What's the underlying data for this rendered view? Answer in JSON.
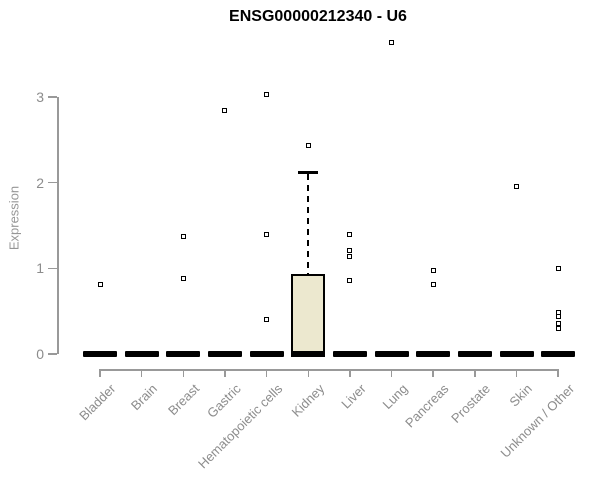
{
  "page": {
    "title": "ENSG00000212340 - U6"
  },
  "colors": {
    "axis": "#999999",
    "tick_text": "#8c8c8c",
    "title_text": "#000000",
    "box_fill": "#ece8cf",
    "box_border": "#000000"
  },
  "chart_data": {
    "type": "boxplot",
    "title": "ENSG00000212340 - U6",
    "xlabel": "",
    "ylabel": "Expression",
    "ylim": [
      0,
      3
    ],
    "yticks": [
      0,
      1,
      2,
      3
    ],
    "grid": false,
    "legend": "none",
    "box_fill": "#ece8cf",
    "categories": [
      "Bladder",
      "Brain",
      "Breast",
      "Gastric",
      "Hematopoietic cells",
      "Kidney",
      "Liver",
      "Lung",
      "Pancreas",
      "Prostate",
      "Skin",
      "Unknown / Other"
    ],
    "series": [
      {
        "category": "Bladder",
        "q1": 0,
        "median": 0,
        "q3": 0,
        "whisker_low": 0,
        "whisker_high": 0,
        "outliers": [
          0.81
        ]
      },
      {
        "category": "Brain",
        "q1": 0,
        "median": 0,
        "q3": 0,
        "whisker_low": 0,
        "whisker_high": 0,
        "outliers": []
      },
      {
        "category": "Breast",
        "q1": 0,
        "median": 0,
        "q3": 0,
        "whisker_low": 0,
        "whisker_high": 0,
        "outliers": [
          1.37,
          0.88
        ]
      },
      {
        "category": "Gastric",
        "q1": 0,
        "median": 0,
        "q3": 0,
        "whisker_low": 0,
        "whisker_high": 0,
        "outliers": [
          2.84
        ]
      },
      {
        "category": "Hematopoietic cells",
        "q1": 0,
        "median": 0,
        "q3": 0,
        "whisker_low": 0,
        "whisker_high": 0,
        "outliers": [
          3.03,
          1.39,
          0.4
        ]
      },
      {
        "category": "Kidney",
        "q1": 0,
        "median": 0,
        "q3": 0.93,
        "whisker_low": 0,
        "whisker_high": 2.12,
        "outliers": [
          2.43
        ]
      },
      {
        "category": "Liver",
        "q1": 0,
        "median": 0,
        "q3": 0,
        "whisker_low": 0,
        "whisker_high": 0,
        "outliers": [
          1.39,
          1.21,
          1.14,
          0.86
        ]
      },
      {
        "category": "Lung",
        "q1": 0,
        "median": 0,
        "q3": 0,
        "whisker_low": 0,
        "whisker_high": 0,
        "outliers": [
          3.64
        ]
      },
      {
        "category": "Pancreas",
        "q1": 0,
        "median": 0,
        "q3": 0,
        "whisker_low": 0,
        "whisker_high": 0,
        "outliers": [
          0.97,
          0.81
        ]
      },
      {
        "category": "Prostate",
        "q1": 0,
        "median": 0,
        "q3": 0,
        "whisker_low": 0,
        "whisker_high": 0,
        "outliers": []
      },
      {
        "category": "Skin",
        "q1": 0,
        "median": 0,
        "q3": 0,
        "whisker_low": 0,
        "whisker_high": 0,
        "outliers": [
          1.96
        ]
      },
      {
        "category": "Unknown / Other",
        "q1": 0,
        "median": 0,
        "q3": 0,
        "whisker_low": 0,
        "whisker_high": 0,
        "outliers": [
          1.0,
          0.49,
          0.44,
          0.36,
          0.3
        ]
      }
    ]
  }
}
